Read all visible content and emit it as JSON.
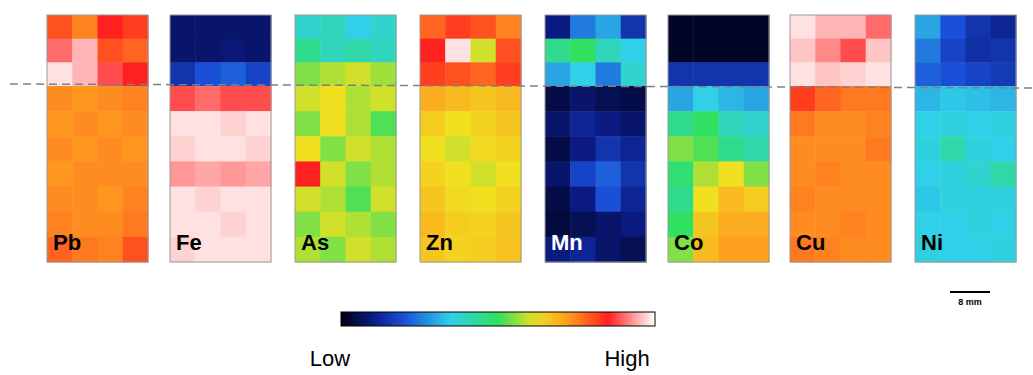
{
  "chart_data": {
    "type": "heatmap",
    "zlim": [
      0,
      100
    ],
    "colorbar": {
      "low_label": "Low",
      "high_label": "High"
    },
    "scale_bar": "8 mm",
    "panels": [
      {
        "element": "Pb",
        "cells": [
          [
            80,
            75,
            85,
            82
          ],
          [
            90,
            95,
            80,
            78
          ],
          [
            98,
            95,
            88,
            85
          ],
          [
            74,
            73,
            74,
            75
          ],
          [
            73,
            74,
            73,
            74
          ],
          [
            74,
            73,
            74,
            73
          ],
          [
            73,
            74,
            74,
            74
          ],
          [
            74,
            74,
            73,
            75
          ],
          [
            75,
            74,
            74,
            76
          ],
          [
            78,
            76,
            75,
            80
          ]
        ]
      },
      {
        "element": "Fe",
        "cells": [
          [
            8,
            8,
            8,
            8
          ],
          [
            8,
            8,
            9,
            8
          ],
          [
            15,
            20,
            22,
            18
          ],
          [
            88,
            90,
            88,
            88
          ],
          [
            98,
            98,
            97,
            98
          ],
          [
            97,
            98,
            98,
            97
          ],
          [
            93,
            94,
            93,
            94
          ],
          [
            98,
            97,
            98,
            98
          ],
          [
            98,
            98,
            97,
            98
          ],
          [
            97,
            98,
            98,
            98
          ]
        ]
      },
      {
        "element": "As",
        "cells": [
          [
            38,
            40,
            35,
            38
          ],
          [
            45,
            40,
            42,
            40
          ],
          [
            55,
            58,
            60,
            57
          ],
          [
            60,
            62,
            58,
            60
          ],
          [
            55,
            62,
            58,
            52
          ],
          [
            62,
            55,
            60,
            58
          ],
          [
            85,
            60,
            55,
            58
          ],
          [
            60,
            58,
            52,
            60
          ],
          [
            55,
            60,
            58,
            55
          ],
          [
            58,
            55,
            60,
            58
          ]
        ]
      },
      {
        "element": "Zn",
        "cells": [
          [
            78,
            82,
            80,
            75
          ],
          [
            85,
            98,
            60,
            80
          ],
          [
            82,
            80,
            78,
            82
          ],
          [
            70,
            68,
            66,
            68
          ],
          [
            65,
            62,
            64,
            66
          ],
          [
            62,
            60,
            63,
            64
          ],
          [
            64,
            62,
            60,
            62
          ],
          [
            66,
            63,
            62,
            64
          ],
          [
            68,
            65,
            64,
            66
          ],
          [
            66,
            64,
            65,
            67
          ]
        ]
      },
      {
        "element": "Mn",
        "cells": [
          [
            10,
            25,
            30,
            15
          ],
          [
            45,
            50,
            40,
            35
          ],
          [
            30,
            35,
            25,
            38
          ],
          [
            5,
            8,
            6,
            5
          ],
          [
            8,
            12,
            10,
            8
          ],
          [
            5,
            10,
            15,
            12
          ],
          [
            8,
            18,
            22,
            15
          ],
          [
            5,
            10,
            20,
            12
          ],
          [
            4,
            6,
            8,
            10
          ],
          [
            10,
            12,
            8,
            6
          ]
        ]
      },
      {
        "element": "Co",
        "cells": [
          [
            2,
            2,
            2,
            2
          ],
          [
            2,
            2,
            2,
            2
          ],
          [
            15,
            15,
            15,
            15
          ],
          [
            30,
            35,
            32,
            30
          ],
          [
            45,
            50,
            40,
            38
          ],
          [
            55,
            52,
            45,
            42
          ],
          [
            48,
            58,
            62,
            55
          ],
          [
            45,
            62,
            68,
            65
          ],
          [
            50,
            66,
            70,
            70
          ],
          [
            55,
            68,
            72,
            72
          ]
        ]
      },
      {
        "element": "Cu",
        "cells": [
          [
            98,
            95,
            95,
            90
          ],
          [
            96,
            92,
            88,
            96
          ],
          [
            98,
            96,
            97,
            98
          ],
          [
            82,
            78,
            76,
            76
          ],
          [
            76,
            74,
            74,
            75
          ],
          [
            74,
            74,
            74,
            76
          ],
          [
            74,
            75,
            74,
            74
          ],
          [
            75,
            74,
            74,
            74
          ],
          [
            74,
            74,
            75,
            74
          ],
          [
            76,
            75,
            74,
            74
          ]
        ]
      },
      {
        "element": "Ni",
        "cells": [
          [
            30,
            20,
            15,
            12
          ],
          [
            25,
            18,
            14,
            15
          ],
          [
            22,
            20,
            18,
            16
          ],
          [
            32,
            34,
            33,
            32
          ],
          [
            35,
            36,
            35,
            36
          ],
          [
            36,
            42,
            36,
            35
          ],
          [
            35,
            36,
            38,
            42
          ],
          [
            34,
            36,
            36,
            36
          ],
          [
            35,
            35,
            36,
            35
          ],
          [
            36,
            35,
            35,
            36
          ]
        ]
      }
    ]
  }
}
